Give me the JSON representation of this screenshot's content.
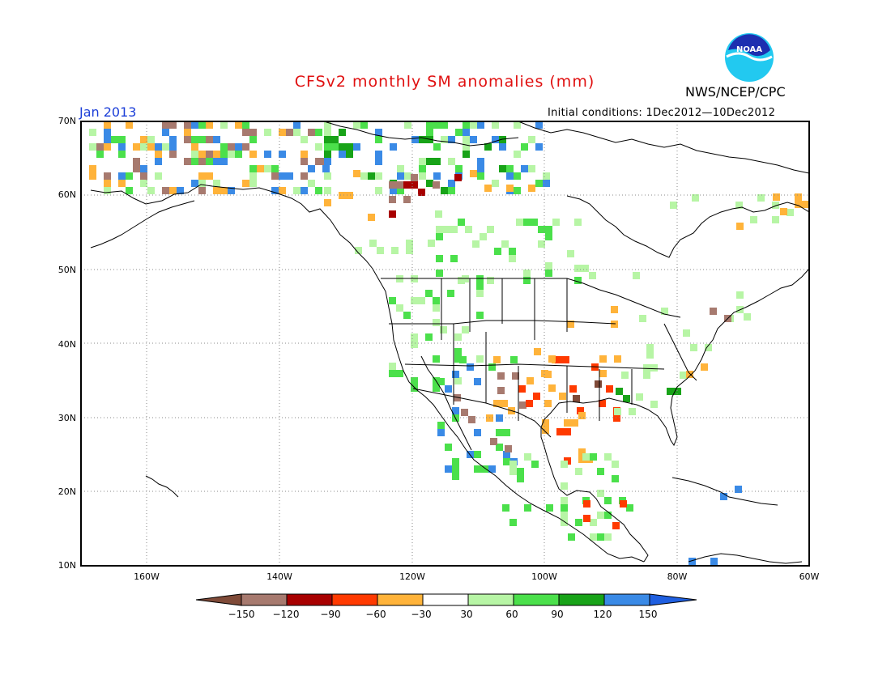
{
  "title": "CFSv2 monthly SM anomalies (mm)",
  "org": "NWS/NCEP/CPC",
  "valid_label": "Jan 2013",
  "ic_label": "Initial conditions: 1Dec2012—10Dec2012",
  "logo_text": "NOAA",
  "lat_labels": [
    "70N",
    "60N",
    "50N",
    "40N",
    "30N",
    "20N",
    "10N"
  ],
  "lon_labels": [
    "160W",
    "140W",
    "120W",
    "100W",
    "80W",
    "60W"
  ],
  "colorbar": {
    "ticks": [
      "−150",
      "−120",
      "−90",
      "−60",
      "−30",
      "30",
      "60",
      "90",
      "120",
      "150"
    ],
    "colors": [
      "#7f4a38",
      "#a77a6f",
      "#a80000",
      "#ff3a00",
      "#ffb33a",
      "#ffffff",
      "#b7f5a5",
      "#4be04b",
      "#18a318",
      "#3a8ae6",
      "#1f5fe0"
    ]
  }
}
